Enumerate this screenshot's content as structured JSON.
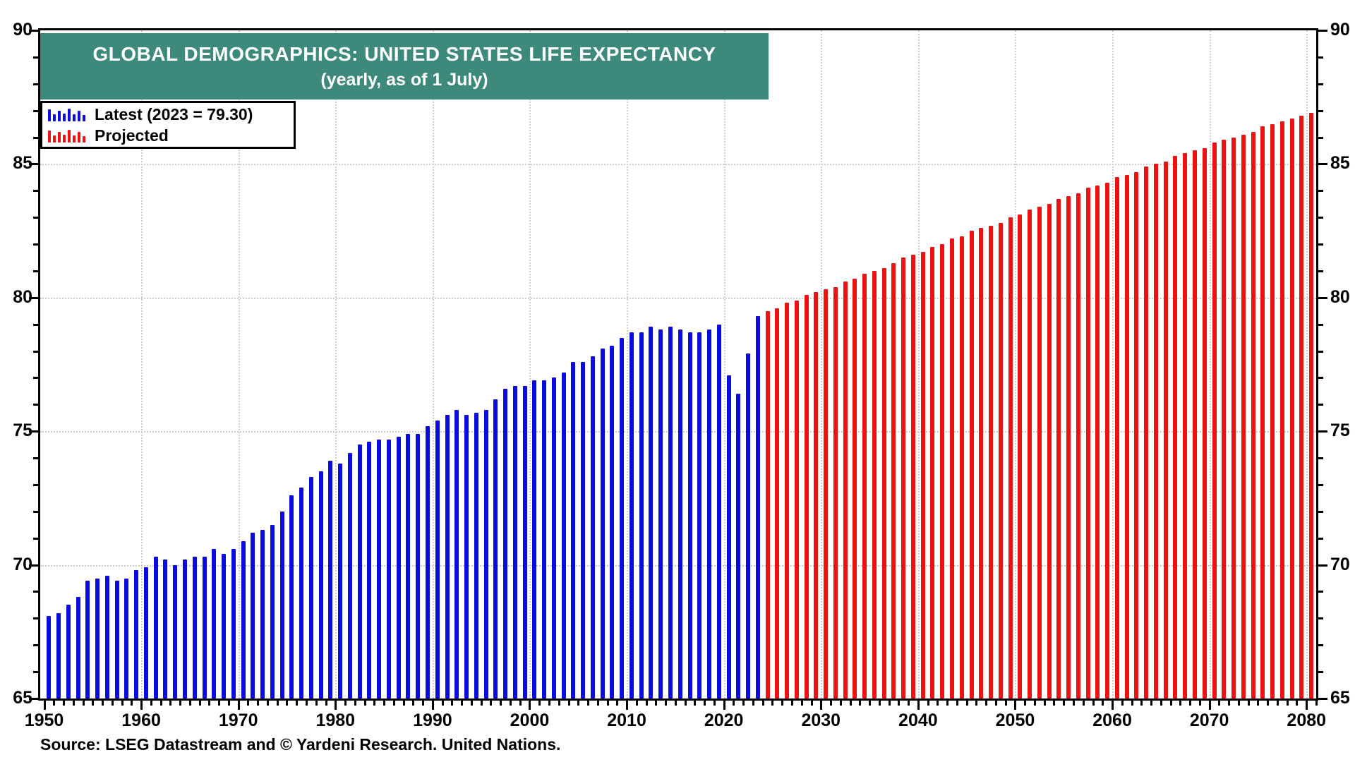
{
  "title": {
    "line1": "GLOBAL DEMOGRAPHICS: UNITED STATES LIFE EXPECTANCY",
    "line2": "(yearly, as of 1 July)",
    "background_color": "#3d8a7c",
    "text_color": "#ffffff"
  },
  "legend": {
    "items": [
      {
        "label": "Latest (2023 = 79.30)",
        "color": "#0b0be0",
        "icon": "mini-bar-chart-icon"
      },
      {
        "label": "Projected",
        "color": "#ee1111",
        "icon": "mini-bar-chart-icon"
      }
    ]
  },
  "source": "Source: LSEG Datastream and © Yardeni Research. United Nations.",
  "chart_data": {
    "type": "bar",
    "title": "GLOBAL DEMOGRAPHICS: UNITED STATES LIFE EXPECTANCY",
    "subtitle": "(yearly, as of 1 July)",
    "xlabel": "",
    "ylabel": "",
    "ylim": [
      65,
      90
    ],
    "xlim": [
      1949.6,
      2081.0
    ],
    "grid": "dotted",
    "legend_position": "top-left",
    "y_tick_labels": [
      "65",
      "70",
      "75",
      "80",
      "85",
      "90"
    ],
    "y_major_ticks": [
      65,
      70,
      75,
      80,
      85,
      90
    ],
    "y_minor_tick_step": 1,
    "x_tick_labels": [
      "1950",
      "1960",
      "1970",
      "1980",
      "1990",
      "2000",
      "2010",
      "2020",
      "2030",
      "2040",
      "2050",
      "2060",
      "2070",
      "2080"
    ],
    "x_major_ticks": [
      1950,
      1960,
      1970,
      1980,
      1990,
      2000,
      2010,
      2020,
      2030,
      2040,
      2050,
      2060,
      2070,
      2080
    ],
    "x_minor_tick_step": 1,
    "h_gridlines": [
      70,
      75,
      80,
      85
    ],
    "v_gridlines": [
      1960,
      1970,
      1980,
      1990,
      2000,
      2010,
      2020,
      2030,
      2040,
      2050,
      2060,
      2070,
      2080
    ],
    "series": [
      {
        "name": "Latest (2023 = 79.30)",
        "color": "#0b0be0",
        "start_year": 1950,
        "values": [
          68.1,
          68.2,
          68.5,
          68.8,
          69.4,
          69.5,
          69.6,
          69.4,
          69.5,
          69.8,
          69.9,
          70.3,
          70.2,
          70.0,
          70.2,
          70.3,
          70.3,
          70.6,
          70.4,
          70.6,
          70.9,
          71.2,
          71.3,
          71.5,
          72.0,
          72.6,
          72.9,
          73.3,
          73.5,
          73.9,
          73.8,
          74.2,
          74.5,
          74.6,
          74.7,
          74.7,
          74.8,
          74.9,
          74.9,
          75.2,
          75.4,
          75.6,
          75.8,
          75.6,
          75.7,
          75.8,
          76.2,
          76.6,
          76.7,
          76.7,
          76.9,
          76.9,
          77.0,
          77.2,
          77.6,
          77.6,
          77.8,
          78.1,
          78.2,
          78.5,
          78.7,
          78.7,
          78.9,
          78.8,
          78.9,
          78.8,
          78.7,
          78.7,
          78.8,
          79.0,
          77.1,
          76.4,
          77.9,
          79.3
        ]
      },
      {
        "name": "Projected",
        "color": "#ee1111",
        "start_year": 2024,
        "values": [
          79.5,
          79.6,
          79.8,
          79.9,
          80.1,
          80.2,
          80.3,
          80.4,
          80.6,
          80.7,
          80.9,
          81.0,
          81.1,
          81.3,
          81.5,
          81.6,
          81.7,
          81.9,
          82.0,
          82.2,
          82.3,
          82.5,
          82.6,
          82.7,
          82.8,
          83.0,
          83.1,
          83.3,
          83.4,
          83.5,
          83.7,
          83.8,
          83.9,
          84.1,
          84.2,
          84.3,
          84.5,
          84.6,
          84.7,
          84.9,
          85.0,
          85.1,
          85.3,
          85.4,
          85.5,
          85.6,
          85.8,
          85.9,
          86.0,
          86.1,
          86.2,
          86.4,
          86.5,
          86.6,
          86.7,
          86.8,
          86.9
        ]
      }
    ]
  }
}
